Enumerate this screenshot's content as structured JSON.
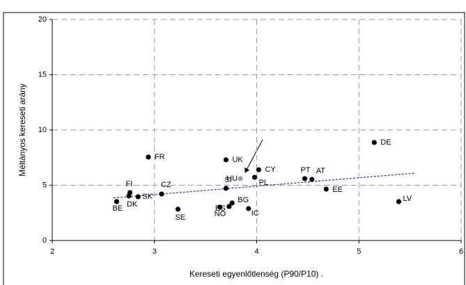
{
  "chart_data": {
    "type": "scatter",
    "xlabel": "Kereseti egyenlőtlenség (P90/P10)  .",
    "ylabel": "Méltányos kereseti arány",
    "xlim": [
      2,
      6
    ],
    "xticks": [
      2,
      3,
      4,
      5,
      6
    ],
    "ylim": [
      0,
      20
    ],
    "yticks": [
      0,
      5,
      10,
      15,
      20
    ],
    "grid": true,
    "series": [
      {
        "labels": [
          "FR",
          "UK",
          "DE",
          "CY",
          "PT",
          "AT",
          "PL",
          "HU",
          "SI",
          "FI",
          "DK",
          "SK",
          "CZ",
          "BE",
          "EE",
          "LV",
          "BG",
          "IC",
          "ES",
          "NO",
          "SE"
        ],
        "x": [
          2.94,
          3.7,
          5.15,
          4.02,
          4.47,
          4.54,
          3.98,
          3.84,
          3.7,
          2.76,
          2.75,
          2.84,
          3.07,
          2.63,
          4.68,
          5.39,
          3.76,
          3.92,
          3.73,
          3.64,
          3.23
        ],
        "values": [
          7.55,
          7.3,
          8.87,
          6.4,
          5.6,
          5.53,
          5.72,
          5.6,
          4.72,
          4.34,
          4.03,
          3.96,
          4.21,
          3.52,
          4.65,
          3.52,
          3.4,
          2.89,
          3.08,
          3.02,
          2.83
        ],
        "colors": [
          "#000000",
          "#000000",
          "#000000",
          "#000000",
          "#000000",
          "#000000",
          "#000000",
          "#a0a0a0",
          "#000000",
          "#000000",
          "#000000",
          "#000000",
          "#000000",
          "#000000",
          "#000000",
          "#000000",
          "#000000",
          "#000000",
          "#000000",
          "#000000",
          "#000000"
        ]
      }
    ],
    "trendline": {
      "x": [
        2.6,
        5.55
      ],
      "values": [
        3.85,
        6.1
      ],
      "color": "#1f2fbf"
    }
  }
}
